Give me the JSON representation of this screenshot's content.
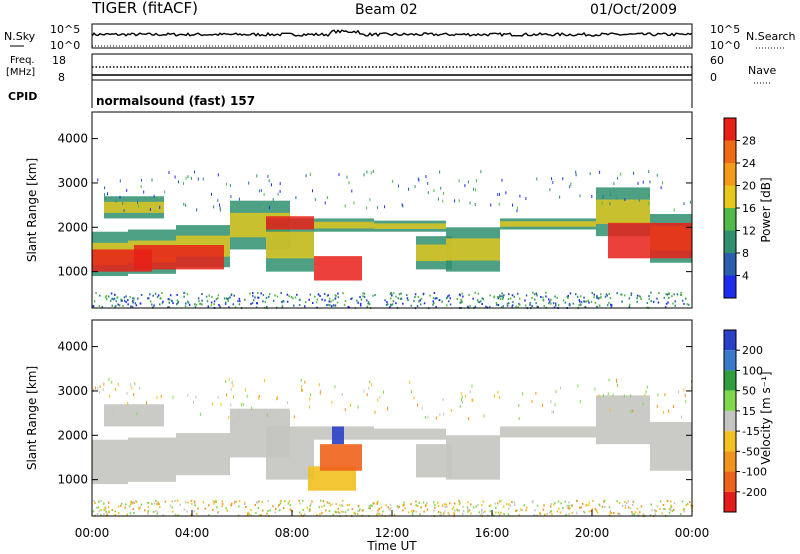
{
  "header": {
    "title": "TIGER (fitACF)",
    "beam": "Beam 02",
    "date": "01/Oct/2009"
  },
  "top_panels": {
    "nsky": {
      "label": "N.Sky",
      "ticks_left": [
        "10^5",
        "10^0"
      ],
      "ticks_right": [
        "10^5",
        "10^0"
      ],
      "right_label": "N.Search"
    },
    "freq": {
      "label_line1": "Freq.",
      "label_line2": "[MHz]",
      "ticks_left": [
        "18",
        "8"
      ],
      "ticks_right": [
        "60",
        "0"
      ],
      "right_label": "Nave"
    },
    "cpid": {
      "label": "CPID",
      "value": "normalsound (fast) 157"
    }
  },
  "chart_data": [
    {
      "type": "heatmap",
      "name": "Power",
      "ylabel": "Slant Range [km]",
      "ylim": [
        180,
        4600
      ],
      "yticks": [
        "1000",
        "2000",
        "3000",
        "4000"
      ],
      "colorbar": {
        "label": "Power [dB]",
        "ticks": [
          "4",
          "8",
          "12",
          "16",
          "20",
          "24",
          "28"
        ],
        "colors": [
          "#1f2cf0",
          "#2a5fb0",
          "#2f8f6e",
          "#52b84a",
          "#e8c81c",
          "#f39a1a",
          "#f06a16",
          "#e82018"
        ]
      }
    },
    {
      "type": "heatmap",
      "name": "Velocity",
      "ylabel": "Slant Range [km]",
      "xlabel": "Time UT",
      "ylim": [
        180,
        4600
      ],
      "yticks": [
        "1000",
        "2000",
        "3000",
        "4000"
      ],
      "xticks": [
        "00:00",
        "04:00",
        "08:00",
        "12:00",
        "16:00",
        "20:00",
        "00:00"
      ],
      "colorbar": {
        "label": "Velocity [m s⁻¹]",
        "ticks": [
          "200",
          "100",
          "50",
          "15",
          "-15",
          "-50",
          "-100",
          "-200"
        ],
        "colors": [
          "#2a40c8",
          "#3a78cc",
          "#2f9e3c",
          "#7ed84a",
          "#c4c4c0",
          "#f2c020",
          "#f0941c",
          "#f0621a",
          "#e61c1c"
        ]
      }
    }
  ]
}
